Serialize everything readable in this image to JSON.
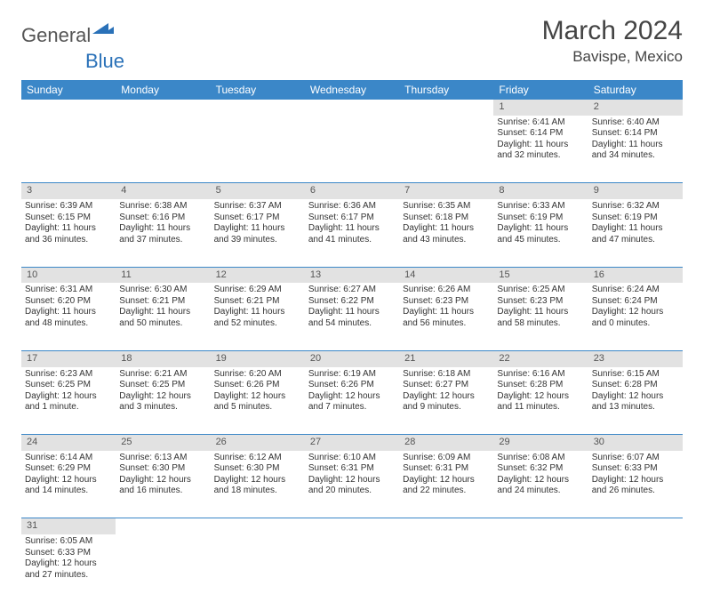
{
  "logo": {
    "part1": "General",
    "part2": "Blue"
  },
  "title": "March 2024",
  "location": "Bavispe, Mexico",
  "colors": {
    "header_bg": "#3b87c8",
    "header_text": "#ffffff",
    "daynum_bg": "#e2e2e2",
    "border": "#3b87c8",
    "logo_accent": "#2a71b8",
    "text": "#333333"
  },
  "weekdays": [
    "Sunday",
    "Monday",
    "Tuesday",
    "Wednesday",
    "Thursday",
    "Friday",
    "Saturday"
  ],
  "weeks": [
    {
      "nums": [
        "",
        "",
        "",
        "",
        "",
        "1",
        "2"
      ],
      "cells": [
        null,
        null,
        null,
        null,
        null,
        {
          "sr": "Sunrise: 6:41 AM",
          "ss": "Sunset: 6:14 PM",
          "d1": "Daylight: 11 hours",
          "d2": "and 32 minutes."
        },
        {
          "sr": "Sunrise: 6:40 AM",
          "ss": "Sunset: 6:14 PM",
          "d1": "Daylight: 11 hours",
          "d2": "and 34 minutes."
        }
      ]
    },
    {
      "nums": [
        "3",
        "4",
        "5",
        "6",
        "7",
        "8",
        "9"
      ],
      "cells": [
        {
          "sr": "Sunrise: 6:39 AM",
          "ss": "Sunset: 6:15 PM",
          "d1": "Daylight: 11 hours",
          "d2": "and 36 minutes."
        },
        {
          "sr": "Sunrise: 6:38 AM",
          "ss": "Sunset: 6:16 PM",
          "d1": "Daylight: 11 hours",
          "d2": "and 37 minutes."
        },
        {
          "sr": "Sunrise: 6:37 AM",
          "ss": "Sunset: 6:17 PM",
          "d1": "Daylight: 11 hours",
          "d2": "and 39 minutes."
        },
        {
          "sr": "Sunrise: 6:36 AM",
          "ss": "Sunset: 6:17 PM",
          "d1": "Daylight: 11 hours",
          "d2": "and 41 minutes."
        },
        {
          "sr": "Sunrise: 6:35 AM",
          "ss": "Sunset: 6:18 PM",
          "d1": "Daylight: 11 hours",
          "d2": "and 43 minutes."
        },
        {
          "sr": "Sunrise: 6:33 AM",
          "ss": "Sunset: 6:19 PM",
          "d1": "Daylight: 11 hours",
          "d2": "and 45 minutes."
        },
        {
          "sr": "Sunrise: 6:32 AM",
          "ss": "Sunset: 6:19 PM",
          "d1": "Daylight: 11 hours",
          "d2": "and 47 minutes."
        }
      ]
    },
    {
      "nums": [
        "10",
        "11",
        "12",
        "13",
        "14",
        "15",
        "16"
      ],
      "cells": [
        {
          "sr": "Sunrise: 6:31 AM",
          "ss": "Sunset: 6:20 PM",
          "d1": "Daylight: 11 hours",
          "d2": "and 48 minutes."
        },
        {
          "sr": "Sunrise: 6:30 AM",
          "ss": "Sunset: 6:21 PM",
          "d1": "Daylight: 11 hours",
          "d2": "and 50 minutes."
        },
        {
          "sr": "Sunrise: 6:29 AM",
          "ss": "Sunset: 6:21 PM",
          "d1": "Daylight: 11 hours",
          "d2": "and 52 minutes."
        },
        {
          "sr": "Sunrise: 6:27 AM",
          "ss": "Sunset: 6:22 PM",
          "d1": "Daylight: 11 hours",
          "d2": "and 54 minutes."
        },
        {
          "sr": "Sunrise: 6:26 AM",
          "ss": "Sunset: 6:23 PM",
          "d1": "Daylight: 11 hours",
          "d2": "and 56 minutes."
        },
        {
          "sr": "Sunrise: 6:25 AM",
          "ss": "Sunset: 6:23 PM",
          "d1": "Daylight: 11 hours",
          "d2": "and 58 minutes."
        },
        {
          "sr": "Sunrise: 6:24 AM",
          "ss": "Sunset: 6:24 PM",
          "d1": "Daylight: 12 hours",
          "d2": "and 0 minutes."
        }
      ]
    },
    {
      "nums": [
        "17",
        "18",
        "19",
        "20",
        "21",
        "22",
        "23"
      ],
      "cells": [
        {
          "sr": "Sunrise: 6:23 AM",
          "ss": "Sunset: 6:25 PM",
          "d1": "Daylight: 12 hours",
          "d2": "and 1 minute."
        },
        {
          "sr": "Sunrise: 6:21 AM",
          "ss": "Sunset: 6:25 PM",
          "d1": "Daylight: 12 hours",
          "d2": "and 3 minutes."
        },
        {
          "sr": "Sunrise: 6:20 AM",
          "ss": "Sunset: 6:26 PM",
          "d1": "Daylight: 12 hours",
          "d2": "and 5 minutes."
        },
        {
          "sr": "Sunrise: 6:19 AM",
          "ss": "Sunset: 6:26 PM",
          "d1": "Daylight: 12 hours",
          "d2": "and 7 minutes."
        },
        {
          "sr": "Sunrise: 6:18 AM",
          "ss": "Sunset: 6:27 PM",
          "d1": "Daylight: 12 hours",
          "d2": "and 9 minutes."
        },
        {
          "sr": "Sunrise: 6:16 AM",
          "ss": "Sunset: 6:28 PM",
          "d1": "Daylight: 12 hours",
          "d2": "and 11 minutes."
        },
        {
          "sr": "Sunrise: 6:15 AM",
          "ss": "Sunset: 6:28 PM",
          "d1": "Daylight: 12 hours",
          "d2": "and 13 minutes."
        }
      ]
    },
    {
      "nums": [
        "24",
        "25",
        "26",
        "27",
        "28",
        "29",
        "30"
      ],
      "cells": [
        {
          "sr": "Sunrise: 6:14 AM",
          "ss": "Sunset: 6:29 PM",
          "d1": "Daylight: 12 hours",
          "d2": "and 14 minutes."
        },
        {
          "sr": "Sunrise: 6:13 AM",
          "ss": "Sunset: 6:30 PM",
          "d1": "Daylight: 12 hours",
          "d2": "and 16 minutes."
        },
        {
          "sr": "Sunrise: 6:12 AM",
          "ss": "Sunset: 6:30 PM",
          "d1": "Daylight: 12 hours",
          "d2": "and 18 minutes."
        },
        {
          "sr": "Sunrise: 6:10 AM",
          "ss": "Sunset: 6:31 PM",
          "d1": "Daylight: 12 hours",
          "d2": "and 20 minutes."
        },
        {
          "sr": "Sunrise: 6:09 AM",
          "ss": "Sunset: 6:31 PM",
          "d1": "Daylight: 12 hours",
          "d2": "and 22 minutes."
        },
        {
          "sr": "Sunrise: 6:08 AM",
          "ss": "Sunset: 6:32 PM",
          "d1": "Daylight: 12 hours",
          "d2": "and 24 minutes."
        },
        {
          "sr": "Sunrise: 6:07 AM",
          "ss": "Sunset: 6:33 PM",
          "d1": "Daylight: 12 hours",
          "d2": "and 26 minutes."
        }
      ]
    },
    {
      "nums": [
        "31",
        "",
        "",
        "",
        "",
        "",
        ""
      ],
      "cells": [
        {
          "sr": "Sunrise: 6:05 AM",
          "ss": "Sunset: 6:33 PM",
          "d1": "Daylight: 12 hours",
          "d2": "and 27 minutes."
        },
        null,
        null,
        null,
        null,
        null,
        null
      ]
    }
  ]
}
